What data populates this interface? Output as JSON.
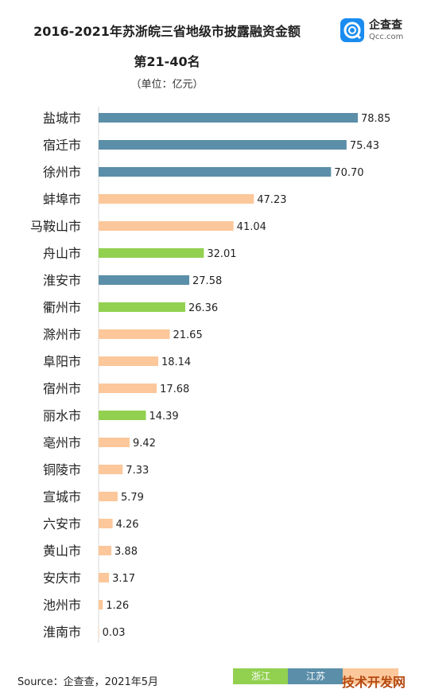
{
  "header": {
    "title_line1": "2016-2021年苏浙皖三省地级市披露融资金额",
    "title_line2": "第21-40名",
    "unit": "（单位：亿元）"
  },
  "logo": {
    "name": "企查查",
    "url": "Qcc.com",
    "icon": "qcc-logo-icon",
    "color": "#1a8cf0"
  },
  "chart_data": {
    "type": "bar",
    "orientation": "horizontal",
    "categories": [
      "盐城市",
      "宿迁市",
      "徐州市",
      "蚌埠市",
      "马鞍山市",
      "舟山市",
      "淮安市",
      "衢州市",
      "滁州市",
      "阜阳市",
      "宿州市",
      "丽水市",
      "亳州市",
      "铜陵市",
      "宣城市",
      "六安市",
      "黄山市",
      "安庆市",
      "池州市",
      "淮南市"
    ],
    "values": [
      78.85,
      75.43,
      70.7,
      47.23,
      41.04,
      32.01,
      27.58,
      26.36,
      21.65,
      18.14,
      17.68,
      14.39,
      9.42,
      7.33,
      5.79,
      4.26,
      3.88,
      3.17,
      1.26,
      0.03
    ],
    "value_labels": [
      "78.85",
      "75.43",
      "70.70",
      "47.23",
      "41.04",
      "32.01",
      "27.58",
      "26.36",
      "21.65",
      "18.14",
      "17.68",
      "14.39",
      "9.42",
      "7.33",
      "5.79",
      "4.26",
      "3.88",
      "3.17",
      "1.26",
      "0.03"
    ],
    "province": [
      "江苏",
      "江苏",
      "江苏",
      "安徽",
      "安徽",
      "浙江",
      "江苏",
      "浙江",
      "安徽",
      "安徽",
      "安徽",
      "浙江",
      "安徽",
      "安徽",
      "安徽",
      "安徽",
      "安徽",
      "安徽",
      "安徽",
      "安徽"
    ],
    "legend": [
      "浙江",
      "江苏",
      "安徽"
    ],
    "legend_placement": "bottom-right",
    "colors": {
      "浙江": "#92d050",
      "江苏": "#5b8ea9",
      "安徽": "#fcc79a"
    },
    "xlim": [
      0,
      80
    ],
    "grid": false
  },
  "footer": {
    "source": "Source：企查查，2021年5月",
    "legend_labels": [
      "浙江",
      "江苏"
    ],
    "corner_mark": "技术开发网"
  }
}
